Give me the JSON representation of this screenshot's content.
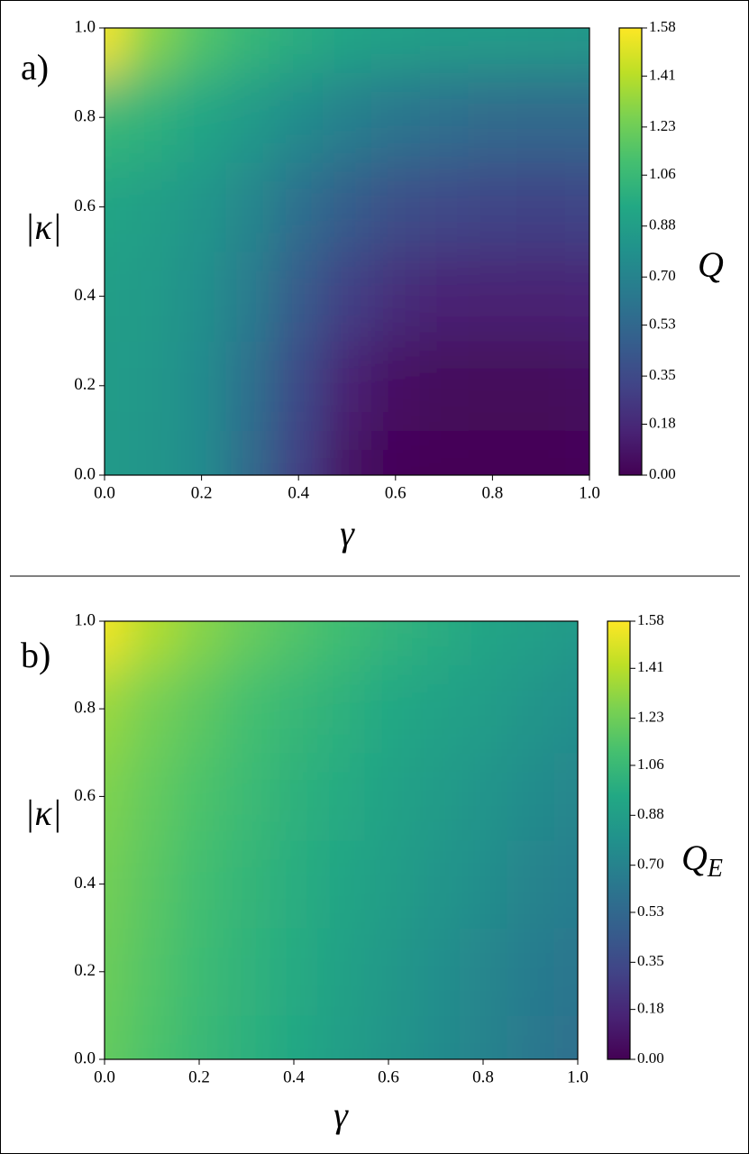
{
  "chart_data": [
    {
      "type": "heatmap",
      "panel_label": "a)",
      "xlabel": "γ",
      "ylabel": "|κ|",
      "colorbar_label": "Q",
      "colormap": "viridis",
      "x": [
        0,
        0.1,
        0.2,
        0.3,
        0.4,
        0.5,
        0.6,
        0.7,
        0.8,
        0.9,
        1.0
      ],
      "y": [
        0,
        0.2,
        0.4,
        0.6,
        0.8,
        1.0
      ],
      "values": [
        [
          0.85,
          0.82,
          0.75,
          0.55,
          0.3,
          0.08,
          0.02,
          0.01,
          0.01,
          0.01,
          0.02
        ],
        [
          0.86,
          0.83,
          0.75,
          0.58,
          0.35,
          0.15,
          0.07,
          0.04,
          0.03,
          0.03,
          0.05
        ],
        [
          0.88,
          0.85,
          0.78,
          0.65,
          0.45,
          0.3,
          0.2,
          0.16,
          0.15,
          0.15,
          0.16
        ],
        [
          0.92,
          0.88,
          0.82,
          0.72,
          0.58,
          0.46,
          0.38,
          0.34,
          0.32,
          0.31,
          0.32
        ],
        [
          1.05,
          1.0,
          0.93,
          0.85,
          0.76,
          0.68,
          0.62,
          0.58,
          0.55,
          0.54,
          0.54
        ],
        [
          1.55,
          1.3,
          1.15,
          1.05,
          0.98,
          0.93,
          0.9,
          0.88,
          0.87,
          0.86,
          0.85
        ]
      ],
      "xlim": [
        0,
        1
      ],
      "ylim": [
        0,
        1
      ],
      "clim": [
        0,
        1.58
      ],
      "xticks": [
        {
          "value": 0,
          "label": "0.0"
        },
        {
          "value": 0.2,
          "label": "0.2"
        },
        {
          "value": 0.4,
          "label": "0.4"
        },
        {
          "value": 0.6,
          "label": "0.6"
        },
        {
          "value": 0.8,
          "label": "0.8"
        },
        {
          "value": 1,
          "label": "1.0"
        }
      ],
      "yticks": [
        {
          "value": 0,
          "label": "0.0"
        },
        {
          "value": 0.2,
          "label": "0.2"
        },
        {
          "value": 0.4,
          "label": "0.4"
        },
        {
          "value": 0.6,
          "label": "0.6"
        },
        {
          "value": 0.8,
          "label": "0.8"
        },
        {
          "value": 1,
          "label": "1.0"
        }
      ],
      "cticks": [
        {
          "value": 0,
          "label": "0.00"
        },
        {
          "value": 0.18,
          "label": "0.18"
        },
        {
          "value": 0.35,
          "label": "0.35"
        },
        {
          "value": 0.53,
          "label": "0.53"
        },
        {
          "value": 0.7,
          "label": "0.70"
        },
        {
          "value": 0.88,
          "label": "0.88"
        },
        {
          "value": 1.06,
          "label": "1.06"
        },
        {
          "value": 1.23,
          "label": "1.23"
        },
        {
          "value": 1.41,
          "label": "1.41"
        },
        {
          "value": 1.58,
          "label": "1.58"
        }
      ]
    },
    {
      "type": "heatmap",
      "panel_label": "b)",
      "xlabel": "γ",
      "ylabel": "|κ|",
      "colorbar_label": "Q",
      "colorbar_label_subscript": "E",
      "colormap": "viridis",
      "x": [
        0,
        0.1,
        0.2,
        0.3,
        0.4,
        0.5,
        0.6,
        0.7,
        0.8,
        0.9,
        1.0
      ],
      "y": [
        0,
        0.2,
        0.4,
        0.6,
        0.8,
        1.0
      ],
      "values": [
        [
          1.2,
          1.13,
          1.06,
          1.0,
          0.94,
          0.88,
          0.82,
          0.76,
          0.7,
          0.64,
          0.58
        ],
        [
          1.22,
          1.15,
          1.08,
          1.02,
          0.96,
          0.9,
          0.84,
          0.78,
          0.72,
          0.66,
          0.62
        ],
        [
          1.24,
          1.17,
          1.1,
          1.04,
          0.98,
          0.93,
          0.88,
          0.82,
          0.77,
          0.71,
          0.67
        ],
        [
          1.27,
          1.2,
          1.13,
          1.07,
          1.01,
          0.96,
          0.91,
          0.86,
          0.81,
          0.76,
          0.72
        ],
        [
          1.33,
          1.25,
          1.18,
          1.11,
          1.05,
          1.0,
          0.95,
          0.91,
          0.87,
          0.82,
          0.78
        ],
        [
          1.55,
          1.4,
          1.3,
          1.22,
          1.15,
          1.09,
          1.03,
          0.98,
          0.93,
          0.89,
          0.85
        ]
      ],
      "xlim": [
        0,
        1
      ],
      "ylim": [
        0,
        1
      ],
      "clim": [
        0,
        1.58
      ],
      "xticks": [
        {
          "value": 0,
          "label": "0.0"
        },
        {
          "value": 0.2,
          "label": "0.2"
        },
        {
          "value": 0.4,
          "label": "0.4"
        },
        {
          "value": 0.6,
          "label": "0.6"
        },
        {
          "value": 0.8,
          "label": "0.8"
        },
        {
          "value": 1,
          "label": "1.0"
        }
      ],
      "yticks": [
        {
          "value": 0,
          "label": "0.0"
        },
        {
          "value": 0.2,
          "label": "0.2"
        },
        {
          "value": 0.4,
          "label": "0.4"
        },
        {
          "value": 0.6,
          "label": "0.6"
        },
        {
          "value": 0.8,
          "label": "0.8"
        },
        {
          "value": 1,
          "label": "1.0"
        }
      ],
      "cticks": [
        {
          "value": 0,
          "label": "0.00"
        },
        {
          "value": 0.18,
          "label": "0.18"
        },
        {
          "value": 0.35,
          "label": "0.35"
        },
        {
          "value": 0.53,
          "label": "0.53"
        },
        {
          "value": 0.7,
          "label": "0.70"
        },
        {
          "value": 0.88,
          "label": "0.88"
        },
        {
          "value": 1.06,
          "label": "1.06"
        },
        {
          "value": 1.23,
          "label": "1.23"
        },
        {
          "value": 1.41,
          "label": "1.41"
        },
        {
          "value": 1.58,
          "label": "1.58"
        }
      ]
    }
  ]
}
